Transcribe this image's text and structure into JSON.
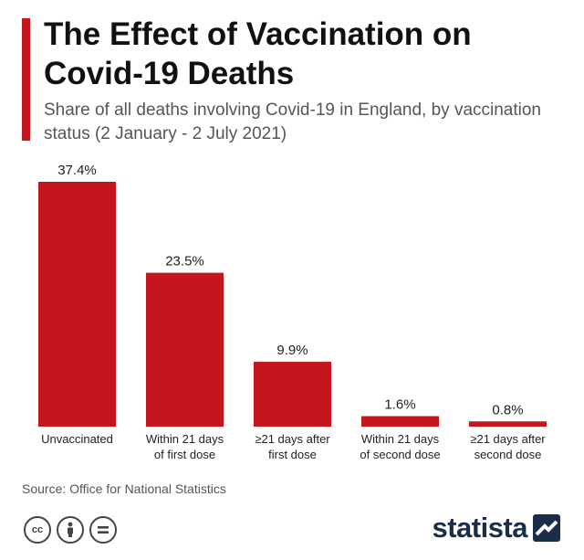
{
  "title": "The Effect of Vaccination on Covid-19 Deaths",
  "subtitle": "Share of all deaths involving Covid-19 in England, by vaccination status (2 January - 2 July 2021)",
  "source": "Source: Office for National Statistics",
  "brand": "statista",
  "colors": {
    "accent": "#c4161c",
    "brand": "#1a2e4a"
  },
  "license_icons": [
    "creative-commons-icon",
    "attribution-icon",
    "no-derivatives-icon"
  ],
  "chart_data": {
    "type": "bar",
    "title": "The Effect of Vaccination on Covid-19 Deaths",
    "subtitle": "Share of all deaths involving Covid-19 in England, by vaccination status (2 January - 2 July 2021)",
    "categories": [
      [
        "Unvaccinated"
      ],
      [
        "Within 21 days",
        "of first dose"
      ],
      [
        "≥21 days after",
        "first dose"
      ],
      [
        "Within 21 days",
        "of second dose"
      ],
      [
        "≥21 days after",
        "second dose"
      ]
    ],
    "values": [
      37.4,
      23.5,
      9.9,
      1.6,
      0.8
    ],
    "value_labels": [
      "37.4%",
      "23.5%",
      "9.9%",
      "1.6%",
      "0.8%"
    ],
    "unit": "%",
    "ylim": [
      0,
      37.4
    ],
    "grid": false,
    "legend": "none"
  }
}
